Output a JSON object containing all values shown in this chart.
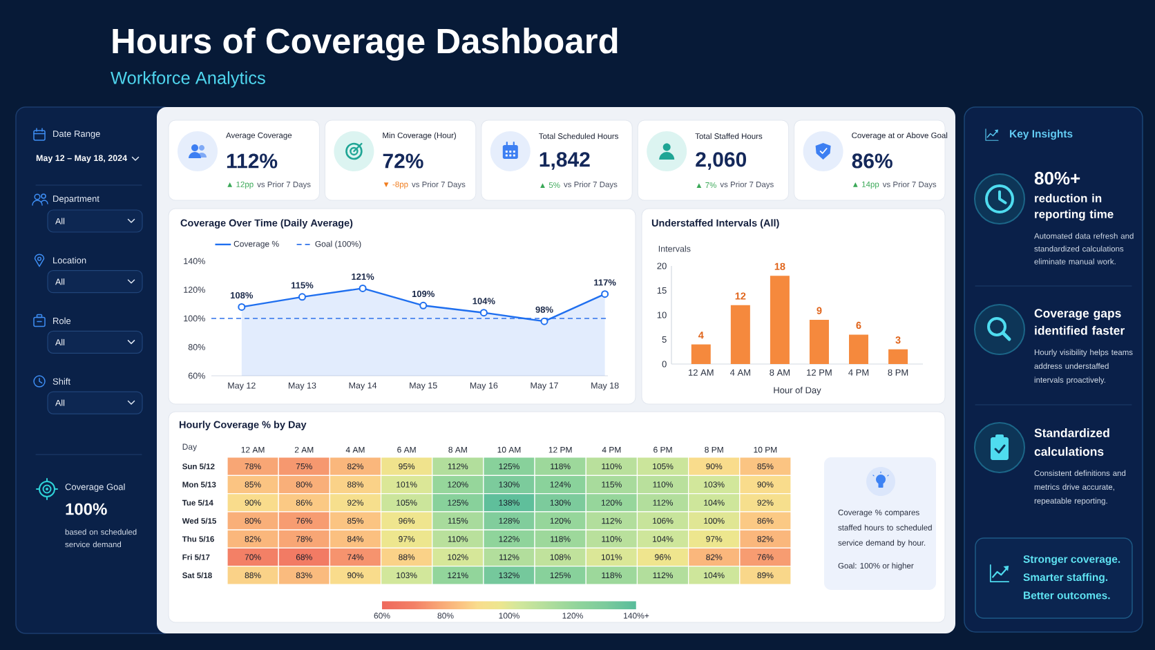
{
  "chart_data": [
    {
      "type": "other",
      "title": "Hours of Coverage Dashboard",
      "subtitle": "Workforce Analytics",
      "annotations": [
        "Date Range",
        "May 12 – May 18, 2024",
        "Department",
        "All",
        "Location",
        "All",
        "Role",
        "All",
        "Shift",
        "All",
        "Coverage Goal",
        "100%",
        "based on scheduled service demand"
      ]
    },
    {
      "type": "other",
      "annotations": [
        "Average Coverage",
        "112%",
        "▲ 12pp",
        "vs Prior 7 Days",
        "Min Coverage (Hour)",
        "72%",
        "▼ -8pp",
        "vs Prior 7 Days",
        "Total Scheduled Hours",
        "1,842",
        "▲ 5%",
        "vs Prior 7 Days",
        "Total Staffed Hours",
        "2,060",
        "▲ 7%",
        "vs Prior 7 Days",
        "Coverage at or Above Goal",
        "86%",
        "▲ 14pp",
        "vs Prior 7 Days"
      ],
      "colors": [
        "#3aa857",
        "#f07d1e",
        "#3aa857",
        "#3aa857",
        "#3aa857"
      ]
    },
    {
      "type": "area",
      "title": "Coverage Over Time (Daily Average)",
      "categories": [
        "May 12",
        "May 13",
        "May 14",
        "May 15",
        "May 16",
        "May 17",
        "May 18"
      ],
      "series": [
        {
          "name": "Coverage %",
          "color": "#1f6fef",
          "values": [
            108,
            115,
            121,
            109,
            104,
            98,
            117
          ],
          "value_labels": [
            "108%",
            "115%",
            "121%",
            "109%",
            "104%",
            "98%",
            "117%"
          ]
        }
      ],
      "ylim": [
        60,
        140
      ],
      "yticks": [
        {
          "value": 60,
          "label": "60%"
        },
        {
          "value": 80,
          "label": "80%"
        },
        {
          "value": 100,
          "label": "100%"
        },
        {
          "value": 120,
          "label": "120%"
        },
        {
          "value": 140,
          "label": "140%"
        }
      ],
      "ref_lines": [
        {
          "axis": "y",
          "value": 100,
          "label": "Goal (100%)",
          "color": "#2f72ea",
          "line_style": "dashed"
        }
      ],
      "legend": "top left",
      "marker": "circle"
    },
    {
      "type": "bar",
      "title": "Understaffed Intervals (All)",
      "categories": [
        "12 AM",
        "4 AM",
        "8 AM",
        "12 PM",
        "4 PM",
        "8 PM"
      ],
      "values": [
        4,
        12,
        18,
        9,
        6,
        3
      ],
      "color": "#f5893d",
      "xlabel": "Hour of Day",
      "ylabel": "Intervals",
      "ylim": [
        0,
        20
      ],
      "yticks": [
        0,
        5,
        10,
        15,
        20
      ],
      "data_labels": true
    },
    {
      "type": "heatmap",
      "title": "Hourly Coverage % by Day",
      "ylabel": "Day",
      "categories": [
        "12 AM",
        "2 AM",
        "4 AM",
        "6 AM",
        "8 AM",
        "10 AM",
        "12 PM",
        "4 PM",
        "6 PM",
        "8 PM",
        "10 PM"
      ],
      "y_categories": [
        "Sun 5/12",
        "Mon 5/13",
        "Tue 5/14",
        "Wed 5/15",
        "Thu 5/16",
        "Fri 5/17",
        "Sat 5/18"
      ],
      "cells": [
        [
          78,
          75,
          82,
          95,
          112,
          125,
          118,
          110,
          105,
          90,
          85
        ],
        [
          85,
          80,
          88,
          101,
          120,
          130,
          124,
          115,
          110,
          103,
          90
        ],
        [
          90,
          86,
          92,
          105,
          125,
          138,
          130,
          120,
          112,
          104,
          92
        ],
        [
          80,
          76,
          85,
          96,
          115,
          128,
          120,
          112,
          106,
          100,
          86
        ],
        [
          82,
          78,
          84,
          97,
          110,
          122,
          118,
          110,
          104,
          97,
          82
        ],
        [
          70,
          68,
          74,
          88,
          102,
          112,
          108,
          101,
          96,
          82,
          76
        ],
        [
          88,
          83,
          90,
          103,
          121,
          132,
          125,
          118,
          112,
          104,
          89
        ]
      ],
      "cell_labels": [
        [
          "78%",
          "75%",
          "82%",
          "95%",
          "112%",
          "125%",
          "118%",
          "110%",
          "105%",
          "90%",
          "85%"
        ],
        [
          "85%",
          "80%",
          "88%",
          "101%",
          "120%",
          "130%",
          "124%",
          "115%",
          "110%",
          "103%",
          "90%"
        ],
        [
          "90%",
          "86%",
          "92%",
          "105%",
          "125%",
          "138%",
          "130%",
          "120%",
          "112%",
          "104%",
          "92%"
        ],
        [
          "80%",
          "76%",
          "85%",
          "96%",
          "115%",
          "128%",
          "120%",
          "112%",
          "106%",
          "100%",
          "86%"
        ],
        [
          "82%",
          "78%",
          "84%",
          "97%",
          "110%",
          "122%",
          "118%",
          "110%",
          "104%",
          "97%",
          "82%"
        ],
        [
          "70%",
          "68%",
          "74%",
          "88%",
          "102%",
          "112%",
          "108%",
          "101%",
          "96%",
          "82%",
          "76%"
        ],
        [
          "88%",
          "83%",
          "90%",
          "103%",
          "121%",
          "132%",
          "125%",
          "118%",
          "112%",
          "104%",
          "89%"
        ]
      ],
      "clim": [
        60,
        140
      ],
      "cticks": [
        {
          "value": 60,
          "label": "60%"
        },
        {
          "value": 80,
          "label": "80%"
        },
        {
          "value": 100,
          "label": "100%"
        },
        {
          "value": 120,
          "label": "120%"
        },
        {
          "value": 140,
          "label": "140%+"
        }
      ],
      "annotations": [
        "Coverage % compares staffed hours to scheduled service demand by hour.",
        "Goal: 100% or higher"
      ]
    },
    {
      "type": "other",
      "title": "Key Insights",
      "annotations": [
        "80%+",
        "reduction in reporting time",
        "Automated data refresh and standardized calculations eliminate manual work.",
        "Coverage gaps identified faster",
        "Hourly visibility helps teams address understaffed intervals proactively.",
        "Standardized calculations",
        "Consistent definitions and metrics drive accurate, repeatable reporting.",
        "Stronger coverage.",
        "Smarter staffing.",
        "Better outcomes."
      ]
    }
  ]
}
